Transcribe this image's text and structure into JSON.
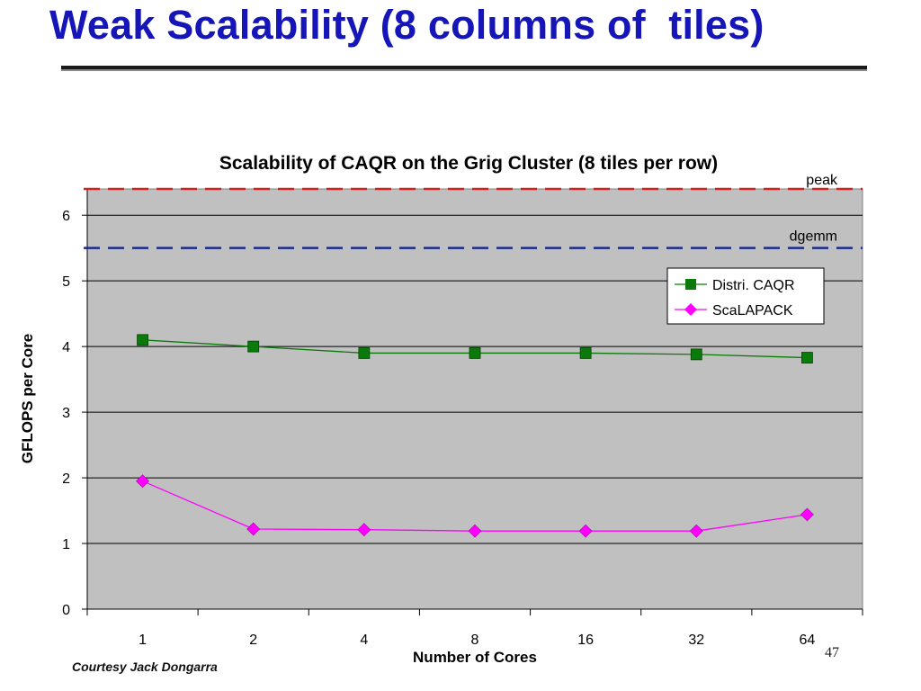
{
  "slide": {
    "title": "Weak Scalability (8 columns of  tiles)",
    "courtesy": "Courtesy Jack Dongarra",
    "page_number": "47"
  },
  "colors": {
    "title": "#1515b8",
    "plot_area": "#c0c0c0",
    "peak_line": "#d42020",
    "dgemm_line": "#1a2a8a",
    "caqr": "#0a7a0a",
    "scalapack": "#ff00ff"
  },
  "chart_data": {
    "type": "line",
    "title": "Scalability of CAQR on the Grig Cluster (8 tiles per row)",
    "xlabel": "Number of Cores",
    "ylabel": "GFLOPS per Core",
    "categories": [
      "1",
      "2",
      "4",
      "8",
      "16",
      "32",
      "64"
    ],
    "ylim": [
      0,
      6.4
    ],
    "yticks": [
      0,
      1,
      2,
      3,
      4,
      5,
      6
    ],
    "grid": true,
    "legend_position": "right",
    "series": [
      {
        "name": "Distri. CAQR",
        "values": [
          4.1,
          4.0,
          3.9,
          3.9,
          3.9,
          3.88,
          3.83
        ],
        "color": "#0a7a0a",
        "marker": "square"
      },
      {
        "name": "ScaLAPACK",
        "values": [
          1.95,
          1.22,
          1.21,
          1.19,
          1.19,
          1.19,
          1.44
        ],
        "color": "#ff00ff",
        "marker": "diamond"
      }
    ],
    "reference_lines": [
      {
        "name": "peak",
        "value": 6.4,
        "color": "#d42020"
      },
      {
        "name": "dgemm",
        "value": 5.5,
        "color": "#1a2a8a"
      }
    ]
  }
}
